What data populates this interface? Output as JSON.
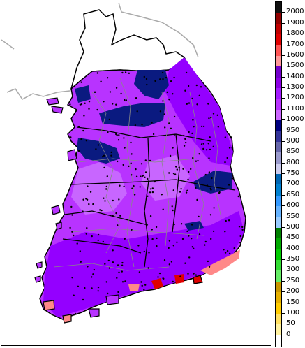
{
  "legend": {
    "labels": [
      "0",
      "50",
      "100",
      "150",
      "200",
      "250",
      "300",
      "350",
      "400",
      "450",
      "500",
      "550",
      "600",
      "650",
      "700",
      "750",
      "800",
      "850",
      "900",
      "950",
      "1000",
      "1100",
      "1200",
      "1300",
      "1400",
      "1500",
      "1600",
      "1700",
      "1800",
      "1900",
      "2000"
    ],
    "colors": [
      "#ffffff",
      "#fff2a0",
      "#ffe060",
      "#ffcc00",
      "#e6b000",
      "#c89600",
      "#66ee66",
      "#33dd33",
      "#00cc00",
      "#00aa00",
      "#008000",
      "#99ccff",
      "#66b3ff",
      "#3399ff",
      "#0080d0",
      "#0066b3",
      "#ccccee",
      "#9999cc",
      "#6666aa",
      "#333399",
      "#000080",
      "#cc66ff",
      "#b833ff",
      "#a31aff",
      "#8c00e6",
      "#7300cc",
      "#ff9999",
      "#ff5555",
      "#e00000",
      "#c00000",
      "#900000",
      "#111111"
    ]
  },
  "map": {
    "colors": {
      "land_base": "#b833ff",
      "high": "#9400ff",
      "low": "#0a1a80",
      "mid": "#c866ff",
      "coast_high": "#ff8888",
      "coast_peak": "#e00000",
      "dmz_line": "#aaaaaa",
      "border": "#000000",
      "province_line": "#888888",
      "station": "#000000"
    }
  }
}
